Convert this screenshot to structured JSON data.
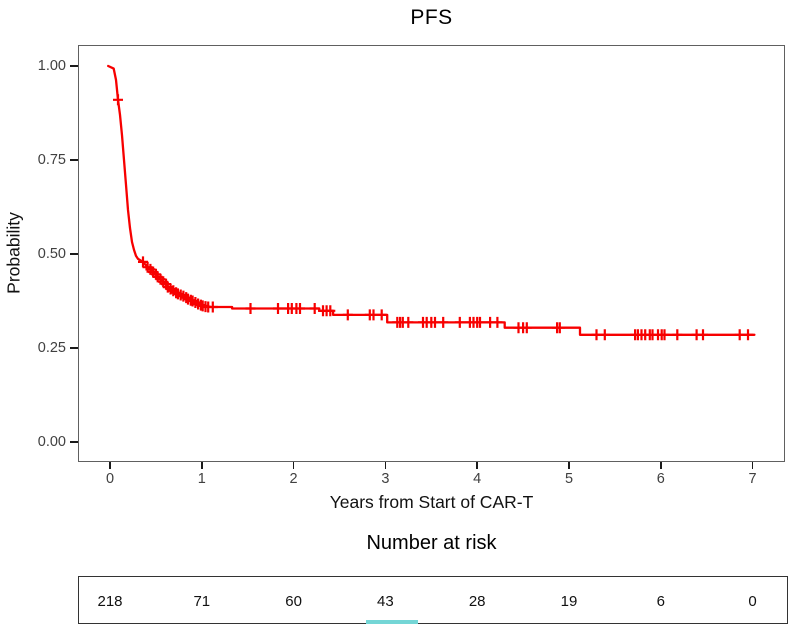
{
  "figure": {
    "background": "#ffffff",
    "panel_border_color": "#606060",
    "tick_color": "#1a1a1a",
    "tick_label_color": "#404040",
    "highlight_underline_color": "#74d6d6"
  },
  "chart_data": {
    "type": "line",
    "subtype": "kaplan-meier-step-curve",
    "title": "PFS",
    "xlabel": "Years from Start of CAR-T",
    "ylabel": "Probability",
    "grid": false,
    "legend": "none",
    "xlim": [
      -0.35,
      7.35
    ],
    "ylim": [
      -0.05,
      1.06
    ],
    "x_ticks": [
      {
        "value": 0,
        "label": "0"
      },
      {
        "value": 1,
        "label": "1"
      },
      {
        "value": 2,
        "label": "2"
      },
      {
        "value": 3,
        "label": "3"
      },
      {
        "value": 4,
        "label": "4"
      },
      {
        "value": 5,
        "label": "5"
      },
      {
        "value": 6,
        "label": "6"
      },
      {
        "value": 7,
        "label": "7"
      }
    ],
    "y_ticks": [
      {
        "value": 0.0,
        "label": "0.00"
      },
      {
        "value": 0.25,
        "label": "0.25"
      },
      {
        "value": 0.5,
        "label": "0.50"
      },
      {
        "value": 0.75,
        "label": "0.75"
      },
      {
        "value": 1.0,
        "label": "1.00"
      }
    ],
    "series": [
      {
        "name": "PFS",
        "color": "#f70000",
        "curve": [
          [
            -0.02,
            1.0
          ],
          [
            0.04,
            0.993
          ],
          [
            0.065,
            0.963
          ],
          [
            0.087,
            0.91
          ],
          [
            0.109,
            0.87
          ],
          [
            0.131,
            0.816
          ],
          [
            0.152,
            0.75
          ],
          [
            0.174,
            0.684
          ],
          [
            0.196,
            0.617
          ],
          [
            0.218,
            0.569
          ],
          [
            0.24,
            0.532
          ],
          [
            0.261,
            0.511
          ],
          [
            0.283,
            0.495
          ],
          [
            0.305,
            0.487
          ],
          [
            0.36,
            0.479
          ],
          [
            0.41,
            0.465
          ],
          [
            0.47,
            0.452
          ],
          [
            0.52,
            0.439
          ],
          [
            0.58,
            0.426
          ],
          [
            0.63,
            0.412
          ],
          [
            0.69,
            0.402
          ],
          [
            0.74,
            0.394
          ],
          [
            0.8,
            0.388
          ],
          [
            0.85,
            0.38
          ],
          [
            0.9,
            0.375
          ],
          [
            0.96,
            0.367
          ],
          [
            1.01,
            0.362
          ],
          [
            1.09,
            0.359
          ],
          [
            1.33,
            0.359
          ],
          [
            1.33,
            0.355
          ],
          [
            2.28,
            0.355
          ],
          [
            2.28,
            0.349
          ],
          [
            2.43,
            0.349
          ],
          [
            2.43,
            0.338
          ],
          [
            3.02,
            0.338
          ],
          [
            3.02,
            0.318
          ],
          [
            4.3,
            0.318
          ],
          [
            4.3,
            0.304
          ],
          [
            5.12,
            0.304
          ],
          [
            5.12,
            0.285
          ],
          [
            7.02,
            0.285
          ]
        ],
        "censors": [
          [
            0.087,
            0.91
          ],
          [
            0.36,
            0.479
          ],
          [
            0.41,
            0.465
          ],
          [
            0.44,
            0.459
          ],
          [
            0.47,
            0.452
          ],
          [
            0.5,
            0.446
          ],
          [
            0.52,
            0.439
          ],
          [
            0.55,
            0.433
          ],
          [
            0.58,
            0.426
          ],
          [
            0.61,
            0.42
          ],
          [
            0.63,
            0.412
          ],
          [
            0.66,
            0.407
          ],
          [
            0.69,
            0.402
          ],
          [
            0.72,
            0.397
          ],
          [
            0.74,
            0.394
          ],
          [
            0.77,
            0.391
          ],
          [
            0.8,
            0.388
          ],
          [
            0.83,
            0.384
          ],
          [
            0.85,
            0.38
          ],
          [
            0.88,
            0.377
          ],
          [
            0.9,
            0.375
          ],
          [
            0.93,
            0.371
          ],
          [
            0.96,
            0.367
          ],
          [
            0.99,
            0.364
          ],
          [
            1.01,
            0.362
          ],
          [
            1.04,
            0.36
          ],
          [
            1.07,
            0.359
          ],
          [
            1.12,
            0.359
          ],
          [
            1.53,
            0.355
          ],
          [
            1.83,
            0.355
          ],
          [
            1.94,
            0.355
          ],
          [
            1.98,
            0.355
          ],
          [
            2.03,
            0.355
          ],
          [
            2.07,
            0.355
          ],
          [
            2.23,
            0.355
          ],
          [
            2.32,
            0.349
          ],
          [
            2.36,
            0.349
          ],
          [
            2.4,
            0.349
          ],
          [
            2.59,
            0.338
          ],
          [
            2.83,
            0.338
          ],
          [
            2.87,
            0.338
          ],
          [
            2.96,
            0.338
          ],
          [
            3.13,
            0.318
          ],
          [
            3.16,
            0.318
          ],
          [
            3.19,
            0.318
          ],
          [
            3.25,
            0.318
          ],
          [
            3.41,
            0.318
          ],
          [
            3.45,
            0.318
          ],
          [
            3.5,
            0.318
          ],
          [
            3.54,
            0.318
          ],
          [
            3.63,
            0.318
          ],
          [
            3.81,
            0.318
          ],
          [
            3.92,
            0.318
          ],
          [
            3.96,
            0.318
          ],
          [
            4.0,
            0.318
          ],
          [
            4.03,
            0.318
          ],
          [
            4.14,
            0.318
          ],
          [
            4.22,
            0.318
          ],
          [
            4.45,
            0.304
          ],
          [
            4.5,
            0.304
          ],
          [
            4.54,
            0.304
          ],
          [
            4.87,
            0.304
          ],
          [
            4.9,
            0.304
          ],
          [
            5.3,
            0.285
          ],
          [
            5.39,
            0.285
          ],
          [
            5.72,
            0.285
          ],
          [
            5.75,
            0.285
          ],
          [
            5.79,
            0.285
          ],
          [
            5.83,
            0.285
          ],
          [
            5.88,
            0.285
          ],
          [
            5.91,
            0.285
          ],
          [
            5.97,
            0.285
          ],
          [
            6.01,
            0.285
          ],
          [
            6.04,
            0.285
          ],
          [
            6.18,
            0.285
          ],
          [
            6.39,
            0.285
          ],
          [
            6.46,
            0.285
          ],
          [
            6.86,
            0.285
          ],
          [
            6.95,
            0.285
          ]
        ]
      }
    ],
    "risk_table": {
      "title": "Number at risk",
      "times": [
        0,
        1,
        2,
        3,
        4,
        5,
        6,
        7
      ],
      "values": [
        218,
        71,
        60,
        43,
        28,
        19,
        6,
        0
      ]
    }
  }
}
